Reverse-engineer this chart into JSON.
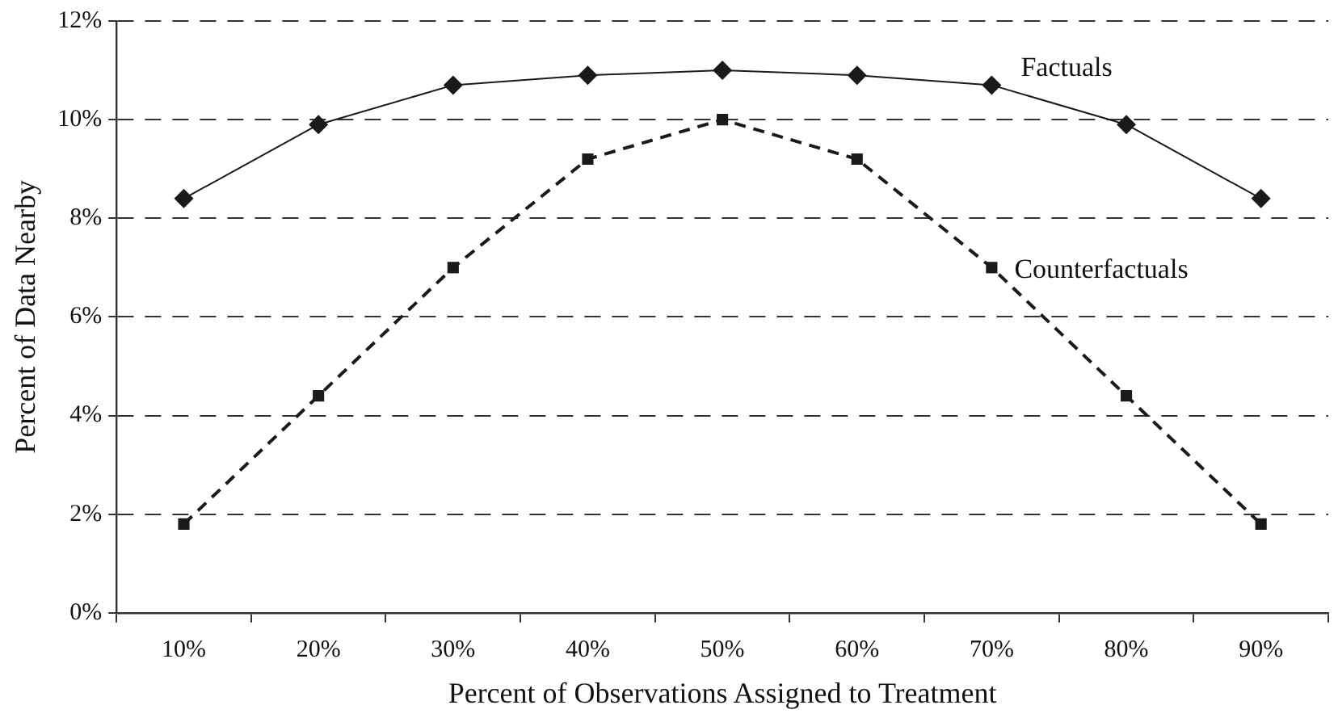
{
  "chart_data": {
    "type": "line",
    "xlabel": "Percent of Observations Assigned to Treatment",
    "ylabel": "Percent of Data Nearby",
    "categories": [
      "10%",
      "20%",
      "30%",
      "40%",
      "50%",
      "60%",
      "70%",
      "80%",
      "90%"
    ],
    "series": [
      {
        "name": "Factuals",
        "color": "#1a1a1a",
        "marker": "diamond",
        "line_style": "solid",
        "values": [
          8.4,
          9.9,
          10.7,
          10.9,
          11.0,
          10.9,
          10.7,
          9.9,
          8.4
        ]
      },
      {
        "name": "Counterfactuals",
        "color": "#1a1a1a",
        "marker": "square",
        "line_style": "dashed",
        "values": [
          1.8,
          4.4,
          7.0,
          9.2,
          10.0,
          9.2,
          7.0,
          4.4,
          1.8
        ]
      }
    ],
    "ylim": [
      0,
      12
    ],
    "yticks": [
      {
        "value": 0,
        "label": "0%"
      },
      {
        "value": 2,
        "label": "2%"
      },
      {
        "value": 4,
        "label": "4%"
      },
      {
        "value": 6,
        "label": "6%"
      },
      {
        "value": 8,
        "label": "8%"
      },
      {
        "value": 10,
        "label": "10%"
      },
      {
        "value": 12,
        "label": "12%"
      }
    ],
    "grid": "y",
    "legend": false
  }
}
